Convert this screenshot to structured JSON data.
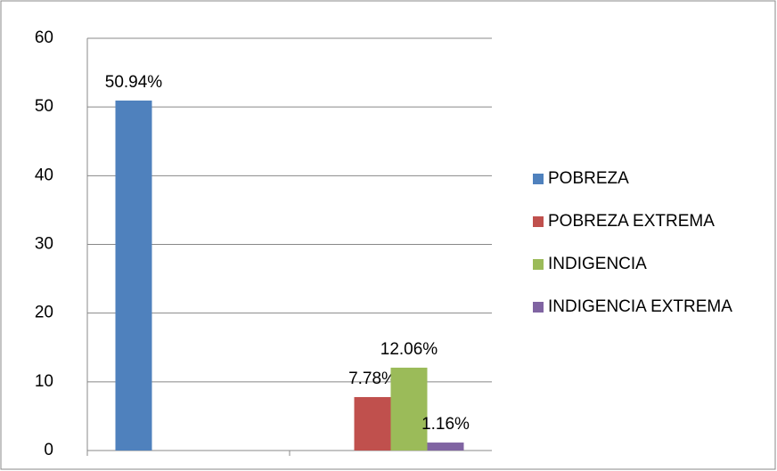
{
  "chart_data": {
    "type": "bar",
    "categories": [
      null,
      null
    ],
    "series": [
      {
        "name": "POBREZA",
        "color": "#4f81bd",
        "values": [
          50.94,
          null
        ],
        "value_labels": [
          "50.94%",
          null
        ]
      },
      {
        "name": "POBREZA EXTREMA",
        "color": "#c0504d",
        "values": [
          null,
          7.78
        ],
        "value_labels": [
          null,
          "7.78%"
        ]
      },
      {
        "name": "INDIGENCIA",
        "color": "#9bbb59",
        "values": [
          null,
          12.06
        ],
        "value_labels": [
          null,
          "12.06%"
        ]
      },
      {
        "name": "INDIGENCIA EXTREMA",
        "color": "#8064a2",
        "values": [
          null,
          1.16
        ],
        "value_labels": [
          null,
          "1.16%"
        ]
      }
    ],
    "ylim": [
      0,
      60
    ],
    "yticks": [
      0,
      10,
      20,
      30,
      40,
      50,
      60
    ],
    "grid": true,
    "legend": "right"
  }
}
